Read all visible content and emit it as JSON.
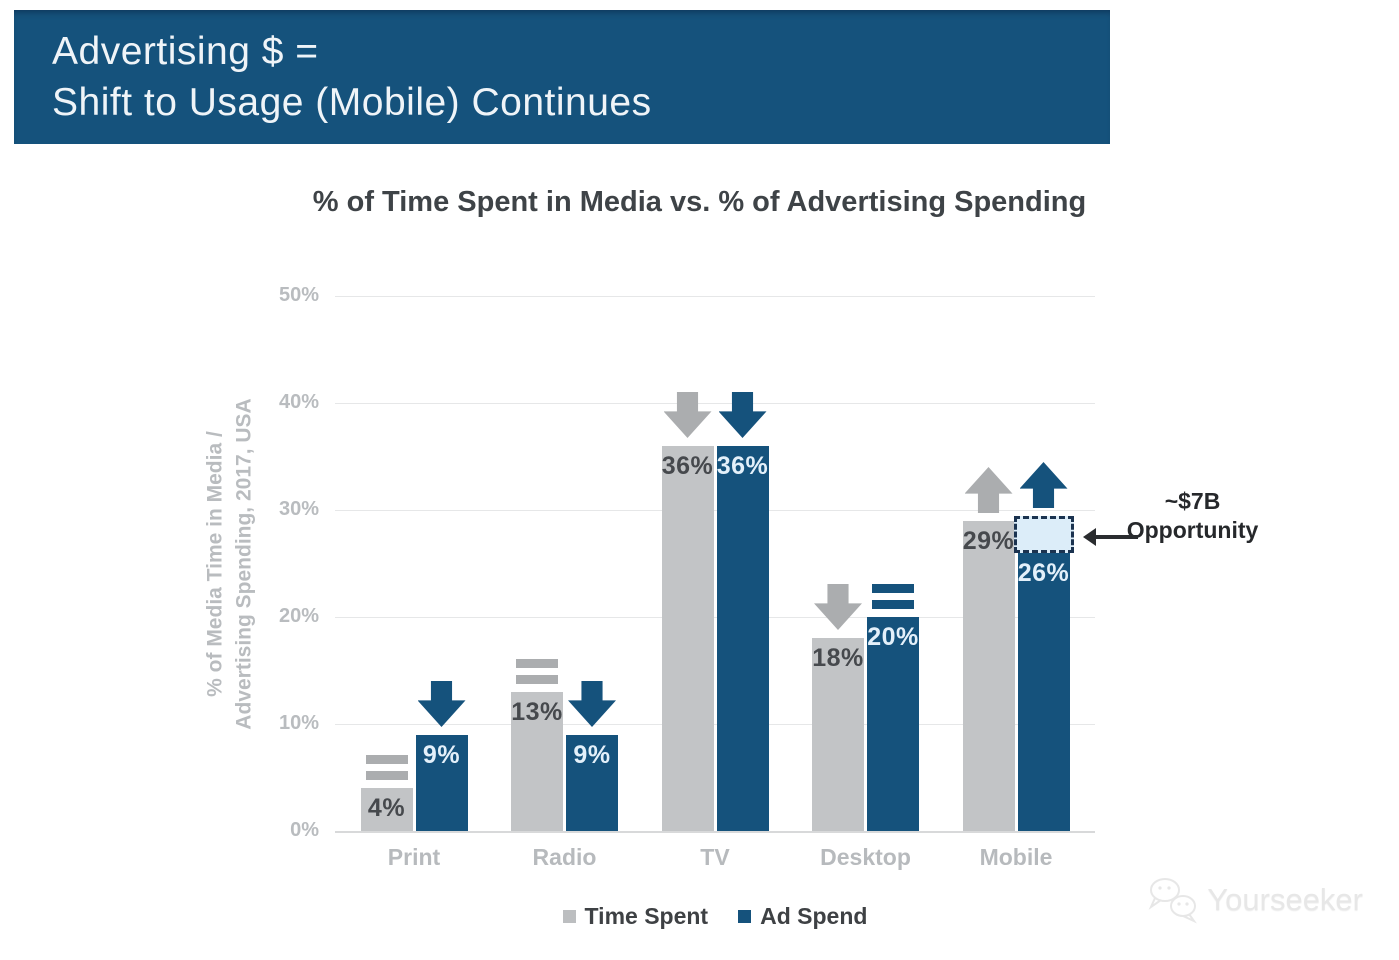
{
  "header": {
    "line1": "Advertising $ =",
    "line2": "Shift to Usage (Mobile) Continues",
    "bg_color": "#15527C",
    "text_color": "#EFF4F8"
  },
  "chart_data": {
    "type": "bar",
    "title": "% of Time Spent in Media vs. % of Advertising Spending",
    "ylabel": "% of Media Time in Media / Advertising Spending, 2017, USA",
    "ylabel_line1": "% of Media Time in Media /",
    "ylabel_line2": "Advertising Spending, 2017, USA",
    "categories": [
      "Print",
      "Radio",
      "TV",
      "Desktop",
      "Mobile"
    ],
    "series": [
      {
        "name": "Time Spent",
        "color": "#C2C4C6",
        "label_color": "#46494D",
        "indicator_color": "#ABADAF",
        "values": [
          4,
          13,
          36,
          18,
          29
        ],
        "trends": [
          "flat",
          "flat",
          "down",
          "down",
          "up"
        ]
      },
      {
        "name": "Ad Spend",
        "color": "#15527C",
        "label_color": "#E3F0FA",
        "indicator_color": "#15527C",
        "values": [
          9,
          9,
          36,
          20,
          26
        ],
        "trends": [
          "down",
          "down",
          "down",
          "flat",
          "up"
        ]
      }
    ],
    "yticks": [
      "0%",
      "10%",
      "20%",
      "30%",
      "40%",
      "50%"
    ],
    "ylim": [
      0,
      50
    ],
    "grid": true,
    "legend_position": "bottom",
    "annotation": {
      "line1": "~$7B",
      "line2": "Opportunity",
      "gap_box": {
        "category": "Mobile",
        "series": "Ad Spend",
        "from_pct": 26,
        "to_pct": 29.5,
        "fill": "#DCEDF9",
        "border": "#1B3350"
      }
    }
  },
  "legend": {
    "items": [
      {
        "label": "Time Spent",
        "color": "#BCBEC0"
      },
      {
        "label": "Ad Spend",
        "color": "#15527C"
      }
    ]
  },
  "watermark": {
    "text": "Yourseeker"
  }
}
